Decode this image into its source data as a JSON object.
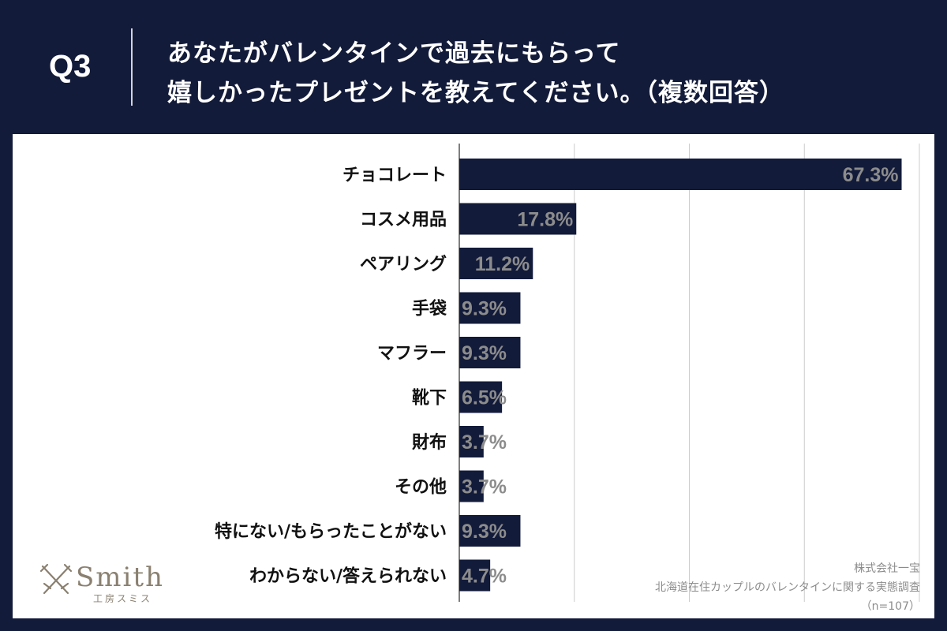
{
  "header": {
    "q_number": "Q3",
    "question_line1": "あなたがバレンタインで過去にもらって",
    "question_line2": "嬉しかったプレゼントを教えてください。（複数回答）"
  },
  "brand": {
    "name": "Smith",
    "sub": "工房スミス",
    "icon": "crossed-swords-icon"
  },
  "source": {
    "company": "株式会社一宝",
    "survey": "北海道在住カップルのバレンタインに関する実態調査",
    "sample": "（n=107）"
  },
  "colors": {
    "background": "#131b3a",
    "bar": "#131b3a",
    "value_label": "#8c8c8c",
    "panel": "#ffffff"
  },
  "chart_data": {
    "type": "bar",
    "orientation": "horizontal",
    "categories": [
      "チョコレート",
      "コスメ用品",
      "ペアリング",
      "手袋",
      "マフラー",
      "靴下",
      "財布",
      "その他",
      "特にない/もらったことがない",
      "わからない/答えられない"
    ],
    "values": [
      67.3,
      17.8,
      11.2,
      9.3,
      9.3,
      6.5,
      3.7,
      3.7,
      9.3,
      4.7
    ],
    "value_labels": [
      "67.3%",
      "17.8%",
      "11.2%",
      "9.3%",
      "9.3%",
      "6.5%",
      "3.7%",
      "3.7%",
      "9.3%",
      "4.7%"
    ],
    "xlim": [
      0,
      70
    ],
    "grid": true,
    "gridline_interval": 17.5,
    "title": "",
    "xlabel": "",
    "ylabel": ""
  }
}
